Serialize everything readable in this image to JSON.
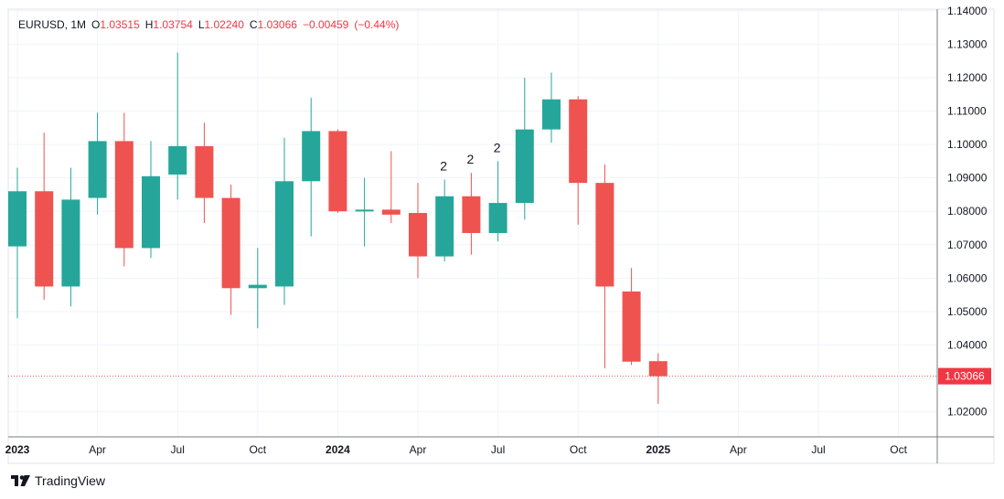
{
  "header": {
    "symbol": "EURUSD",
    "interval": "1M",
    "open_label": "O",
    "open": "1.03515",
    "high_label": "H",
    "high": "1.03754",
    "low_label": "L",
    "low": "1.02240",
    "close_label": "C",
    "close": "1.03066",
    "change": "−0.00459",
    "change_pct": "(−0.44%)"
  },
  "brand": {
    "name": "TradingView"
  },
  "colors": {
    "up": "#26a69a",
    "down": "#ef5350",
    "last_price_bg": "#f23645",
    "text": "#131722",
    "grid": "#f0f3fa"
  },
  "chart_data": {
    "type": "candlestick",
    "ylim": [
      1.0125,
      1.1405
    ],
    "y_ticks": [
      "1.02000",
      "1.03000",
      "1.04000",
      "1.05000",
      "1.06000",
      "1.07000",
      "1.08000",
      "1.09000",
      "1.10000",
      "1.11000",
      "1.12000",
      "1.13000",
      "1.14000"
    ],
    "x_ticks": [
      {
        "i": 0,
        "label": "2023",
        "bold": true
      },
      {
        "i": 3,
        "label": "Apr"
      },
      {
        "i": 6,
        "label": "Jul"
      },
      {
        "i": 9,
        "label": "Oct"
      },
      {
        "i": 12,
        "label": "2024",
        "bold": true
      },
      {
        "i": 15,
        "label": "Apr"
      },
      {
        "i": 18,
        "label": "Jul"
      },
      {
        "i": 21,
        "label": "Oct"
      },
      {
        "i": 24,
        "label": "2025",
        "bold": true
      },
      {
        "i": 27,
        "label": "Apr"
      },
      {
        "i": 30,
        "label": "Jul"
      },
      {
        "i": 33,
        "label": "Oct"
      }
    ],
    "last_price": "1.03066",
    "candles": [
      {
        "i": 0,
        "o": 1.0695,
        "h": 1.093,
        "l": 1.048,
        "c": 1.086
      },
      {
        "i": 1,
        "o": 1.086,
        "h": 1.1035,
        "l": 1.0535,
        "c": 1.0575
      },
      {
        "i": 2,
        "o": 1.0575,
        "h": 1.093,
        "l": 1.0515,
        "c": 1.0835
      },
      {
        "i": 3,
        "o": 1.084,
        "h": 1.1095,
        "l": 1.079,
        "c": 1.101
      },
      {
        "i": 4,
        "o": 1.101,
        "h": 1.1095,
        "l": 1.0635,
        "c": 1.069
      },
      {
        "i": 5,
        "o": 1.069,
        "h": 1.101,
        "l": 1.066,
        "c": 1.0905
      },
      {
        "i": 6,
        "o": 1.091,
        "h": 1.1275,
        "l": 1.0835,
        "c": 1.0995
      },
      {
        "i": 7,
        "o": 1.0995,
        "h": 1.1065,
        "l": 1.0765,
        "c": 1.084
      },
      {
        "i": 8,
        "o": 1.084,
        "h": 1.088,
        "l": 1.049,
        "c": 1.057
      },
      {
        "i": 9,
        "o": 1.057,
        "h": 1.069,
        "l": 1.045,
        "c": 1.058
      },
      {
        "i": 10,
        "o": 1.0575,
        "h": 1.102,
        "l": 1.052,
        "c": 1.089
      },
      {
        "i": 11,
        "o": 1.089,
        "h": 1.114,
        "l": 1.0725,
        "c": 1.104
      },
      {
        "i": 12,
        "o": 1.104,
        "h": 1.1045,
        "l": 1.0795,
        "c": 1.08
      },
      {
        "i": 13,
        "o": 1.08,
        "h": 1.09,
        "l": 1.0695,
        "c": 1.0805
      },
      {
        "i": 14,
        "o": 1.0805,
        "h": 1.098,
        "l": 1.0765,
        "c": 1.079
      },
      {
        "i": 15,
        "o": 1.0795,
        "h": 1.0885,
        "l": 1.06,
        "c": 1.0665
      },
      {
        "i": 16,
        "o": 1.0665,
        "h": 1.0895,
        "l": 1.065,
        "c": 1.0845
      },
      {
        "i": 17,
        "o": 1.0845,
        "h": 1.0915,
        "l": 1.067,
        "c": 1.0735
      },
      {
        "i": 18,
        "o": 1.0735,
        "h": 1.095,
        "l": 1.071,
        "c": 1.0825
      },
      {
        "i": 19,
        "o": 1.0825,
        "h": 1.12,
        "l": 1.0775,
        "c": 1.1045
      },
      {
        "i": 20,
        "o": 1.1045,
        "h": 1.1215,
        "l": 1.1005,
        "c": 1.1135
      },
      {
        "i": 21,
        "o": 1.1135,
        "h": 1.1145,
        "l": 1.076,
        "c": 1.0885
      },
      {
        "i": 22,
        "o": 1.0885,
        "h": 1.094,
        "l": 1.033,
        "c": 1.0575
      },
      {
        "i": 23,
        "o": 1.056,
        "h": 1.063,
        "l": 1.034,
        "c": 1.035
      },
      {
        "i": 24,
        "o": 1.03515,
        "h": 1.03754,
        "l": 1.0224,
        "c": 1.03066
      }
    ],
    "annotations": [
      {
        "i": 16,
        "label": "2"
      },
      {
        "i": 17,
        "label": "2"
      },
      {
        "i": 18,
        "label": "2"
      }
    ]
  }
}
